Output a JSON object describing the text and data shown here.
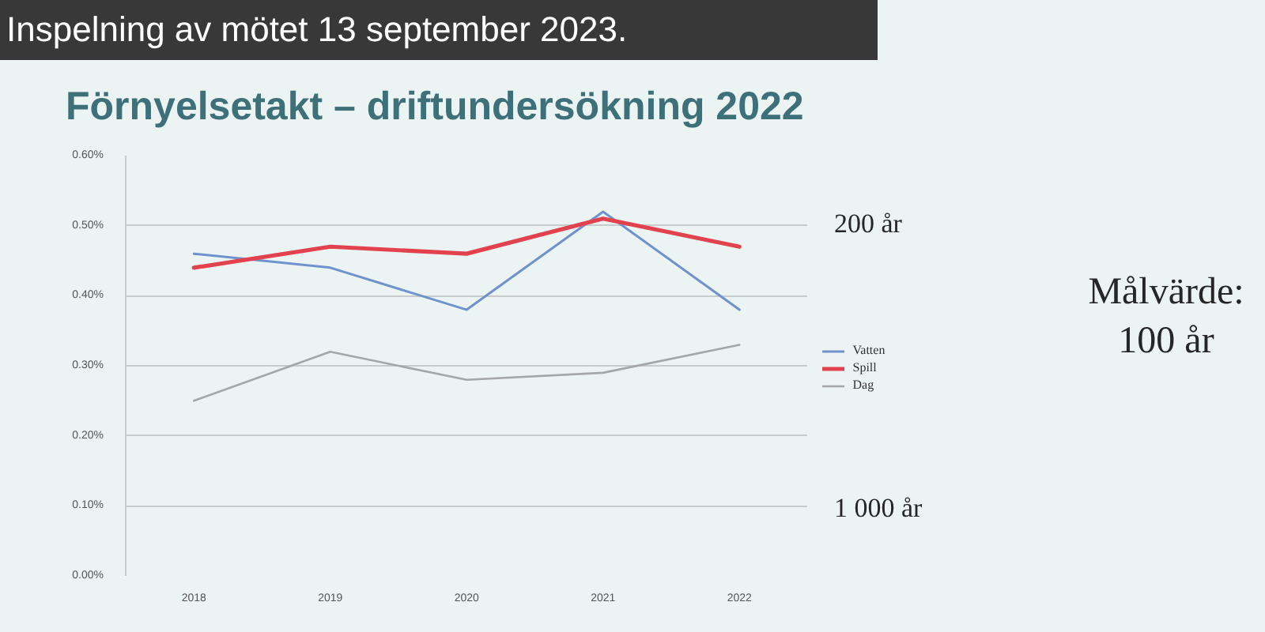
{
  "chart_data": {
    "type": "line",
    "title": "Förnyelsetakt – driftundersökning 2022",
    "categories": [
      "2018",
      "2019",
      "2020",
      "2021",
      "2022"
    ],
    "series": [
      {
        "name": "Vatten",
        "color": "#7092cc",
        "values": [
          0.46,
          0.44,
          0.38,
          0.52,
          0.38
        ]
      },
      {
        "name": "Spill",
        "color": "#e2424e",
        "values": [
          0.44,
          0.47,
          0.46,
          0.51,
          0.47
        ]
      },
      {
        "name": "Dag",
        "color": "#a3a7a7",
        "values": [
          0.25,
          0.32,
          0.28,
          0.29,
          0.33
        ]
      }
    ],
    "ylim": [
      0,
      0.6
    ],
    "yticks": [
      {
        "value": 0,
        "label": "0.00%"
      },
      {
        "value": 0.1,
        "label": "0.10%"
      },
      {
        "value": 0.2,
        "label": "0.20%"
      },
      {
        "value": 0.3,
        "label": "0.30%"
      },
      {
        "value": 0.4,
        "label": "0.40%"
      },
      {
        "value": 0.5,
        "label": "0.50%"
      },
      {
        "value": 0.6,
        "label": "0.60%"
      }
    ],
    "grid": "y",
    "legend": "right",
    "annotations": [
      "Inspelning av mötet 13 september 2023.",
      "200 år",
      "1 000 år",
      "Målvärde:\n100 år"
    ]
  }
}
